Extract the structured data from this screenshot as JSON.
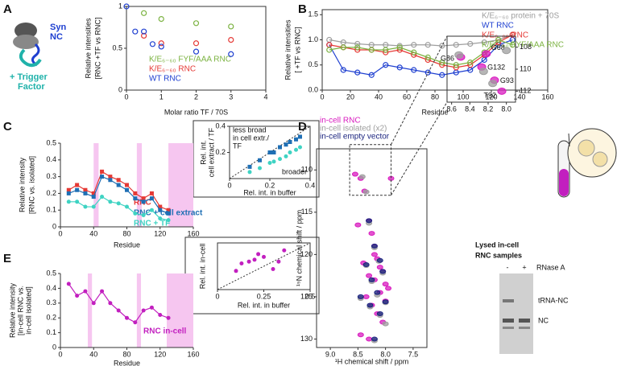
{
  "figure": {
    "panel_labels": [
      "A",
      "B",
      "C",
      "D",
      "E"
    ],
    "gel": {
      "title": [
        "Lysed in-cell",
        "RNC samples"
      ],
      "lanes": [
        "-",
        "+"
      ],
      "treatment": "RNase A",
      "bands": [
        "tRNA-NC",
        "NC"
      ]
    }
  },
  "chart_data": [
    {
      "type": "scatter",
      "xlabel": "Molar ratio TF / 70S",
      "ylabel": [
        "Relative intensities",
        "[RNC +TF vs RNC]"
      ],
      "xlim": [
        0,
        4
      ],
      "xticks": [
        0,
        1,
        2,
        3,
        4
      ],
      "ylim": [
        0,
        1
      ],
      "yticks": [
        0,
        0.5,
        1
      ],
      "annotations": [
        "Syn",
        "NC",
        "+ Trigger",
        "Factor"
      ],
      "series": [
        {
          "name": "K/E₆₋₆₀ FYF/AAA RNC",
          "color": "#7cb342",
          "marker": "open-circle",
          "x": [
            0.5,
            1,
            2,
            3
          ],
          "values": [
            0.92,
            0.85,
            0.8,
            0.76
          ]
        },
        {
          "name": "K/E₆₋₆₀ RNC",
          "color": "#e53935",
          "marker": "open-circle",
          "x": [
            0.5,
            1,
            2,
            3
          ],
          "values": [
            0.65,
            0.56,
            0.56,
            0.6
          ]
        },
        {
          "name": "WT RNC",
          "color": "#1e3fd0",
          "marker": "open-circle",
          "x": [
            0,
            0.25,
            0.5,
            0.75,
            1,
            2,
            3
          ],
          "values": [
            1,
            0.7,
            0.7,
            0.55,
            0.52,
            0.46,
            0.43
          ]
        }
      ]
    },
    {
      "type": "line",
      "xlabel": "Residue",
      "ylabel": [
        "Relative intensities",
        "[ +TF vs RNC]"
      ],
      "xlim": [
        0,
        160
      ],
      "xticks": [
        0,
        20,
        40,
        60,
        80,
        100,
        120,
        140,
        160
      ],
      "ylim": [
        0,
        1.6
      ],
      "yticks": [
        {
          "value": 0,
          "label": "0.0"
        },
        {
          "value": 0.5,
          "label": "0.5"
        },
        {
          "value": 1,
          "label": "1.0"
        },
        {
          "value": 1.5,
          "label": "1.5"
        }
      ],
      "x": [
        5,
        15,
        25,
        35,
        45,
        55,
        65,
        75,
        85,
        95,
        105,
        115,
        125,
        135
      ],
      "series": [
        {
          "name": "K/E₆₋₆₀ protein + 70S",
          "color": "#9e9e9e",
          "marker": "open-circle",
          "values": [
            1.0,
            0.95,
            0.92,
            0.9,
            0.9,
            0.88,
            0.9,
            0.9,
            0.88,
            0.9,
            0.92,
            0.95,
            1.0,
            1.1
          ]
        },
        {
          "name": "WT RNC",
          "color": "#1e3fd0",
          "marker": "open-circle",
          "values": [
            0.9,
            0.4,
            0.35,
            0.3,
            0.5,
            0.45,
            0.4,
            0.35,
            0.3,
            0.35,
            0.4,
            0.6,
            0.9,
            1.0
          ]
        },
        {
          "name": "K/E₆₋₆₀ RNC",
          "color": "#e53935",
          "marker": "open-circle",
          "values": [
            0.9,
            0.85,
            0.8,
            0.8,
            0.75,
            0.8,
            0.7,
            0.6,
            0.5,
            0.45,
            0.5,
            0.7,
            0.95,
            1.1
          ]
        },
        {
          "name": "K/E₆₋₆₀ FYF/AAA RNC",
          "color": "#7cb342",
          "marker": "open-circle",
          "values": [
            0.8,
            0.85,
            0.85,
            0.8,
            0.8,
            0.85,
            0.75,
            0.65,
            0.55,
            0.5,
            0.55,
            0.75,
            1.0,
            0.9
          ]
        }
      ]
    },
    {
      "type": "line",
      "xlabel": "Residue",
      "ylabel": [
        "Relative intensity",
        "[RNC vs. isolated]"
      ],
      "xlim": [
        0,
        160
      ],
      "xticks": [
        0,
        40,
        80,
        120,
        160
      ],
      "ylim": [
        0,
        0.5
      ],
      "yticks": [
        0,
        0.1,
        0.2,
        0.3,
        0.4,
        0.5
      ],
      "shaded": [
        [
          40,
          46
        ],
        [
          92,
          98
        ],
        [
          130,
          160
        ]
      ],
      "shade_color": "#f6c6f0",
      "x": [
        10,
        20,
        30,
        40,
        50,
        60,
        70,
        80,
        90,
        100,
        110,
        120,
        130
      ],
      "series": [
        {
          "name": "RNC",
          "color": "#e53935",
          "marker": "square",
          "values": [
            0.22,
            0.25,
            0.22,
            0.2,
            0.33,
            0.3,
            0.28,
            0.25,
            0.2,
            0.17,
            0.2,
            0.12,
            0.1
          ]
        },
        {
          "name": "RNC + cell extract",
          "color": "#1f6fb4",
          "marker": "square",
          "values": [
            0.2,
            0.22,
            0.2,
            0.18,
            0.3,
            0.28,
            0.25,
            0.22,
            0.17,
            0.15,
            0.17,
            0.1,
            0.08
          ]
        },
        {
          "name": "RNC + TF",
          "color": "#3fd3c3",
          "marker": "circle",
          "values": [
            0.15,
            0.15,
            0.12,
            0.12,
            0.18,
            0.15,
            0.14,
            0.12,
            0.08,
            0.07,
            0.1,
            0.05,
            0.04
          ]
        }
      ]
    },
    {
      "type": "scatter",
      "xlabel": "Rel. int. in buffer",
      "ylabel": [
        "Rel. int.",
        "cell extract / TF"
      ],
      "xlim": [
        0,
        0.4
      ],
      "xticks": [
        0,
        0.2,
        0.4
      ],
      "ylim": [
        0,
        0.4
      ],
      "yticks": [
        0.2,
        0.4
      ],
      "annotations": [
        "less broad",
        "in cell extr./",
        "TF",
        "broader"
      ],
      "series": [
        {
          "name": null,
          "color": "#1f6fb4",
          "marker": "square",
          "x": [
            0.1,
            0.15,
            0.2,
            0.22,
            0.25,
            0.28,
            0.3,
            0.33,
            0.35
          ],
          "values": [
            0.09,
            0.14,
            0.2,
            0.2,
            0.24,
            0.26,
            0.28,
            0.3,
            0.32
          ]
        },
        {
          "name": null,
          "color": "#3fd3c3",
          "marker": "circle",
          "x": [
            0.1,
            0.15,
            0.2,
            0.22,
            0.25,
            0.28,
            0.3,
            0.33,
            0.35
          ],
          "values": [
            0.05,
            0.08,
            0.12,
            0.13,
            0.15,
            0.17,
            0.2,
            0.22,
            0.24
          ]
        }
      ]
    },
    {
      "type": "scatter",
      "xlabel": "¹H chemical shift / ppm",
      "ylabel": [
        "¹⁵N chemical shift / ppm"
      ],
      "xlim": [
        9.25,
        7.25
      ],
      "xticks": [
        {
          "value": 9,
          "label": "9.0"
        },
        {
          "value": 8.5,
          "label": "8.5"
        },
        {
          "value": 8,
          "label": "8.0"
        },
        {
          "value": 7.5,
          "label": "7.5"
        }
      ],
      "ylim": [
        107.5,
        131
      ],
      "y_inverted": true,
      "yticks": [
        110,
        115,
        120,
        125,
        130
      ],
      "series": [
        {
          "name": "in-cell RNC",
          "color": "#d81bbf",
          "marker": "peak",
          "x": [
            8.55,
            8.45,
            8.38,
            8.3,
            8.25,
            8.2,
            8.15,
            8.1,
            8.05,
            8.0,
            7.95,
            8.4,
            8.3,
            8.2,
            8.1,
            8.0,
            8.35,
            8.25,
            8.15,
            8.05,
            8.45,
            8.3,
            8.2,
            8.5,
            7.9
          ],
          "values": [
            110.5,
            111,
            112.5,
            116,
            117.5,
            119,
            120.5,
            121.5,
            122,
            123.5,
            124,
            121,
            122.5,
            123,
            124.5,
            125.5,
            125,
            126,
            127,
            128,
            129.5,
            130,
            120,
            116.5,
            111
          ]
        },
        {
          "name": "in-cell isolated (x2)",
          "color": "#9e9e9e",
          "marker": "peak",
          "x": [
            8.42,
            8.3,
            8.2,
            8.12,
            8.05,
            8.35,
            8.25,
            8.15,
            8.0,
            8.45,
            8.28,
            8.1,
            8.0,
            8.2,
            8.35
          ],
          "values": [
            110.8,
            116.3,
            119.2,
            120.8,
            122.2,
            121.3,
            123.2,
            124.8,
            125.7,
            125.2,
            126.2,
            127.2,
            128.2,
            130.2,
            112.6
          ]
        },
        {
          "name": "in-cell empty vector",
          "color": "#1a237e",
          "marker": "peak",
          "x": [
            8.3,
            8.2,
            8.1,
            8.05,
            8.35,
            8.25,
            8.15,
            8.0,
            8.45,
            8.28,
            8.1,
            8.2
          ],
          "values": [
            116,
            119,
            120.7,
            122,
            121.2,
            123,
            124.5,
            125.6,
            125,
            126,
            127,
            130
          ]
        }
      ]
    },
    {
      "type": "scatter",
      "xlim": [
        8.65,
        7.9
      ],
      "xticks": [
        8.6,
        8.4,
        8.2,
        {
          "value": 8,
          "label": "8.0"
        }
      ],
      "ylim": [
        107,
        113
      ],
      "y_inverted": true,
      "yticks": [
        108,
        110,
        112
      ],
      "series": [
        {
          "name": null,
          "color": "#d81bbf",
          "marker": "peak",
          "x": [
            8.5,
            8.22,
            8.27,
            8.13,
            8.05
          ],
          "values": [
            108.9,
            108.6,
            109.8,
            111,
            112
          ],
          "labels": [
            "G86",
            "G68",
            "G132",
            "G93",
            "T92"
          ]
        },
        {
          "name": null,
          "color": "#9e9e9e",
          "marker": "peak",
          "x": [
            8.52,
            8.0,
            8.25,
            8.15
          ],
          "values": [
            108.7,
            108.3,
            110.2,
            111.3
          ]
        }
      ]
    },
    {
      "type": "line",
      "xlabel": "Residue",
      "ylabel": [
        "Relative intensity",
        "[in-cell RNC vs.",
        "in-cell isolated]"
      ],
      "xlim": [
        0,
        160
      ],
      "xticks": [
        0,
        40,
        80,
        120,
        160
      ],
      "ylim": [
        0,
        0.5
      ],
      "yticks": [
        0,
        0.1,
        0.2,
        0.3,
        0.4,
        0.5
      ],
      "shaded": [
        [
          33,
          38
        ],
        [
          92,
          97
        ],
        [
          128,
          160
        ]
      ],
      "shade_color": "#f6c6f0",
      "x": [
        10,
        20,
        30,
        40,
        50,
        60,
        70,
        80,
        90,
        100,
        110,
        120,
        130
      ],
      "series": [
        {
          "name": "RNC in-cell",
          "color": "#c21fbf",
          "marker": "circle",
          "values": [
            0.43,
            0.35,
            0.38,
            0.3,
            0.38,
            0.3,
            0.25,
            0.2,
            0.17,
            0.25,
            0.27,
            0.22,
            0.2
          ]
        }
      ]
    },
    {
      "type": "scatter",
      "xlabel": "Rel. int. in buffer",
      "ylabel": [
        "Rel. int. in-cell"
      ],
      "xlim": [
        0,
        0.5
      ],
      "xticks": [
        0,
        0.25,
        0.5
      ],
      "ylim": [
        0,
        0.5
      ],
      "yticks": [],
      "series": [
        {
          "name": null,
          "color": "#c21fbf",
          "marker": "circle",
          "x": [
            0.1,
            0.13,
            0.17,
            0.2,
            0.22,
            0.25,
            0.3,
            0.33,
            0.36
          ],
          "values": [
            0.2,
            0.28,
            0.3,
            0.32,
            0.38,
            0.35,
            0.22,
            0.3,
            0.42
          ]
        }
      ]
    }
  ]
}
